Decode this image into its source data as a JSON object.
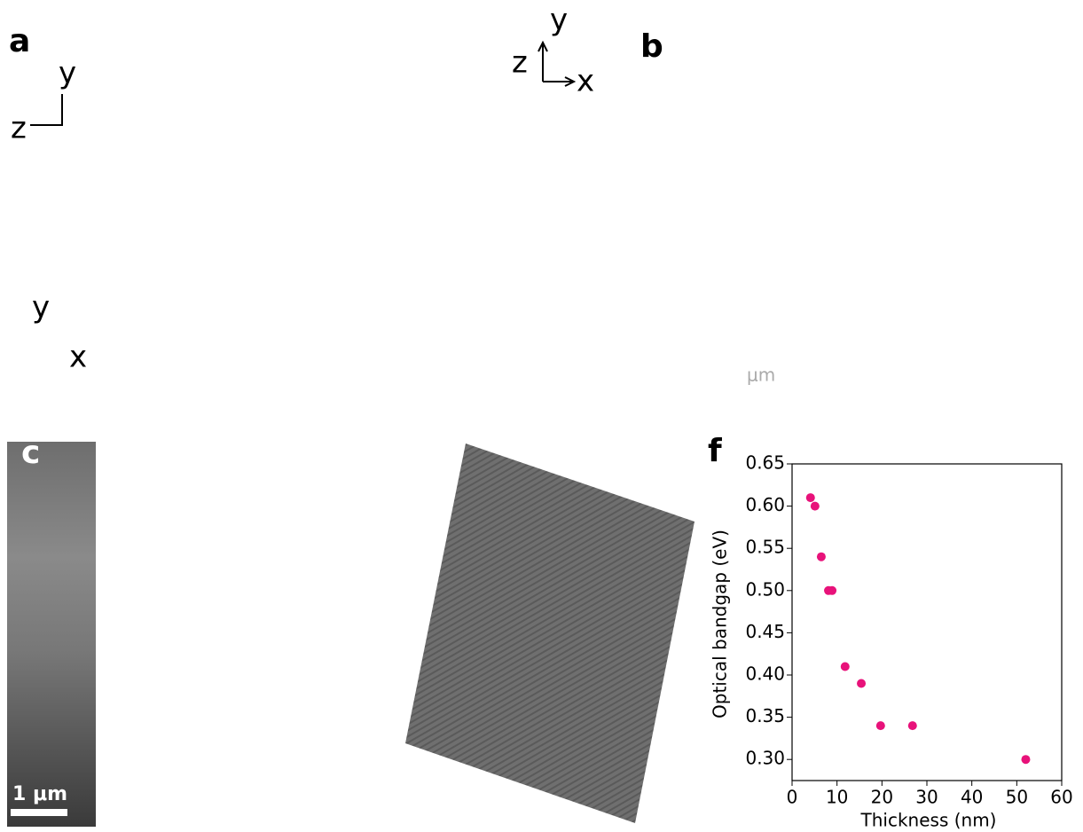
{
  "panel_a": {
    "label": "a",
    "axis_y": "y",
    "axis_z": "z",
    "axis_y2": "y",
    "axis_x2": "x"
  },
  "panel_b": {
    "label": "b",
    "axis_y": "y",
    "axis_z": "z",
    "axis_x": "x",
    "unit": "μm"
  },
  "panel_c": {
    "label": "c",
    "scale_bar": "1 μm"
  },
  "chart_data": {
    "type": "scatter",
    "panel_label": "f",
    "x_label": "Thickness (nm)",
    "y_label": "Optical bandgap (eV)",
    "x": [
      4.1,
      5.1,
      6.5,
      8.1,
      8.9,
      11.8,
      15.4,
      19.7,
      26.8,
      52
    ],
    "values": [
      0.61,
      0.6,
      0.54,
      0.5,
      0.5,
      0.41,
      0.39,
      0.34,
      0.34,
      0.3
    ],
    "color": "#e8127a",
    "xlim": [
      0,
      60
    ],
    "ylim": [
      0.275,
      0.65
    ],
    "xticks": [
      0,
      10,
      20,
      30,
      40,
      50,
      60
    ],
    "yticks": [
      {
        "value": 0.3,
        "label": "0.30"
      },
      0.35,
      {
        "value": 0.4,
        "label": "0.40"
      },
      0.45,
      {
        "value": 0.5,
        "label": "0.50"
      },
      0.55,
      {
        "value": 0.6,
        "label": "0.60"
      },
      0.65
    ]
  }
}
